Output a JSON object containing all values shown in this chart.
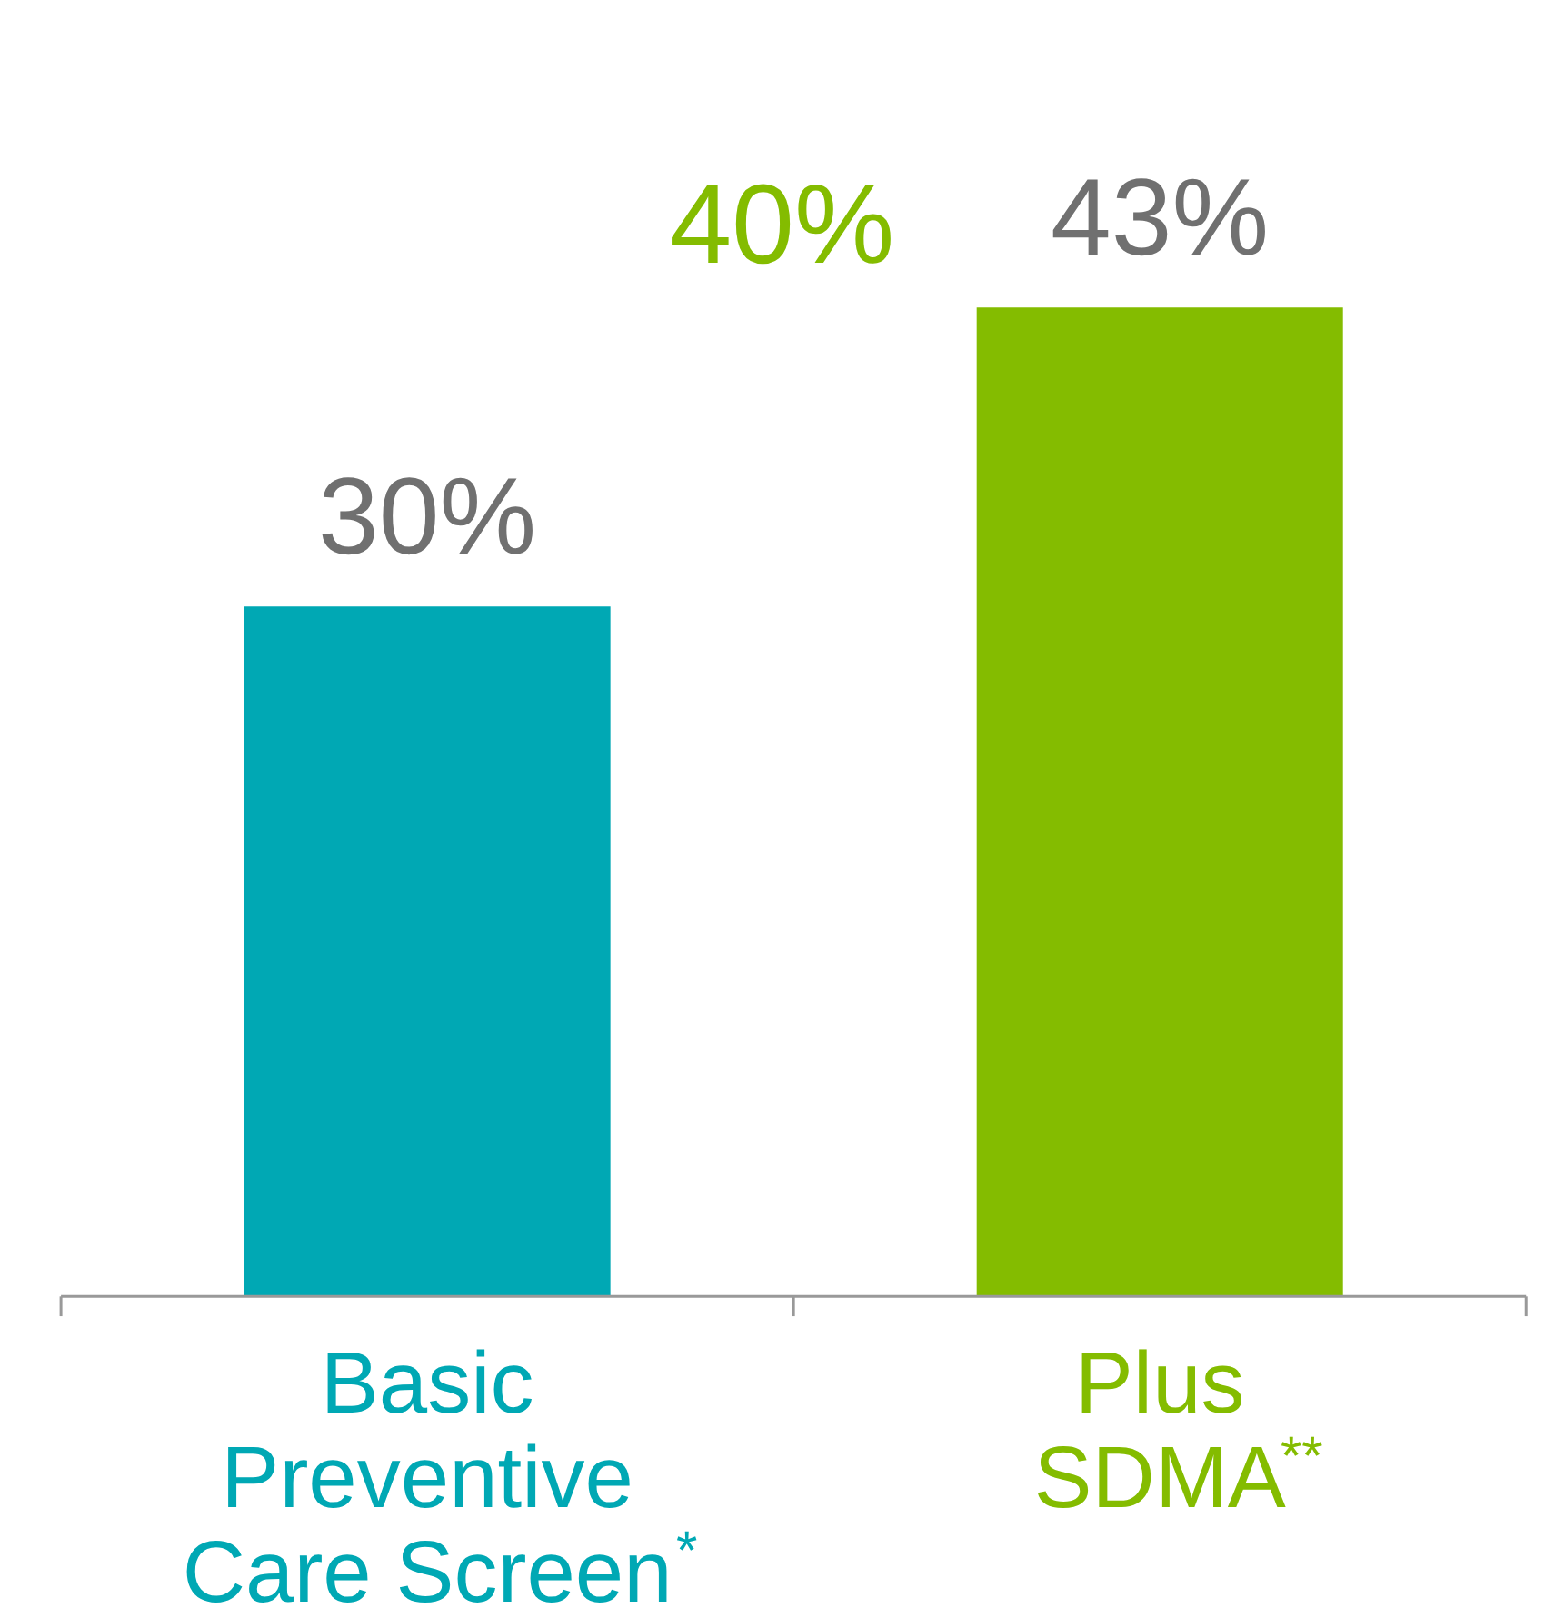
{
  "chart_data": {
    "type": "bar",
    "categories": [
      "Basic\nPreventive\nCare Screen$^{*}$",
      "Plus\nSDMA$^{**}$"
    ],
    "values": [
      30,
      43
    ],
    "colors": [
      "#00a8b4",
      "#84bc00"
    ],
    "value_labels": [
      "30%",
      "43%"
    ],
    "annotations": [
      "40%"
    ]
  }
}
